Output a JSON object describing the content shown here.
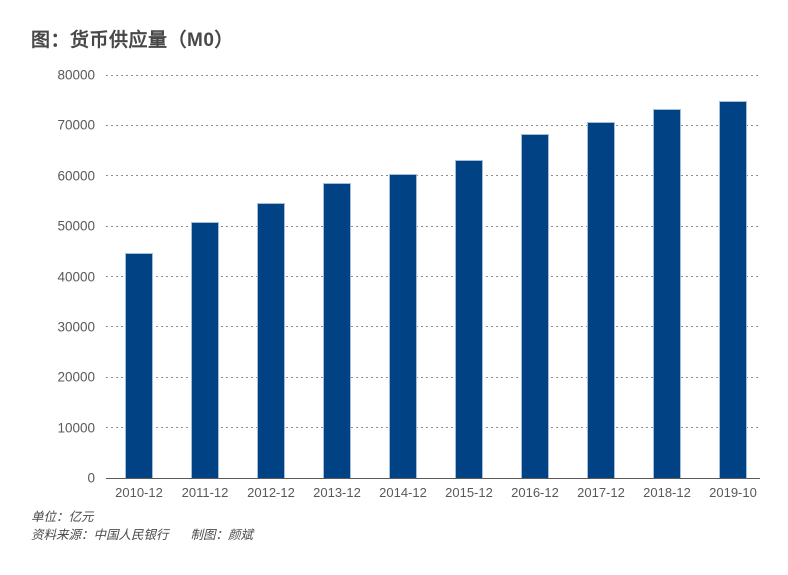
{
  "title": "图：货币供应量（M0）",
  "footer": {
    "unit": "单位：亿元",
    "source": "资料来源：中国人民银行",
    "credit": "制图：颜斌"
  },
  "chart_data": {
    "type": "bar",
    "title": "图：货币供应量（M0）",
    "unit": "亿元",
    "categories": [
      "2010-12",
      "2011-12",
      "2012-12",
      "2013-12",
      "2014-12",
      "2015-12",
      "2016-12",
      "2017-12",
      "2018-12",
      "2019-10"
    ],
    "values": [
      44628,
      50748,
      54660,
      58574,
      60260,
      63217,
      68304,
      70646,
      73208,
      74800
    ],
    "ylim": [
      0,
      80000
    ],
    "yticks": [
      80000,
      70000,
      60000,
      50000,
      40000,
      30000,
      20000,
      10000,
      0
    ],
    "xlabel": "",
    "ylabel": "",
    "grid": "horizontal-dotted",
    "legend_position": "none",
    "colors": {
      "bar_fill": "#004284",
      "bar_border": "#a6bdd8",
      "gridline": "#8c8c8c",
      "axis_line": "#5a5a5a",
      "tick_label": "#595959",
      "title_text": "#484848",
      "footer_text": "#4a4a4a",
      "background": "#ffffff"
    }
  }
}
